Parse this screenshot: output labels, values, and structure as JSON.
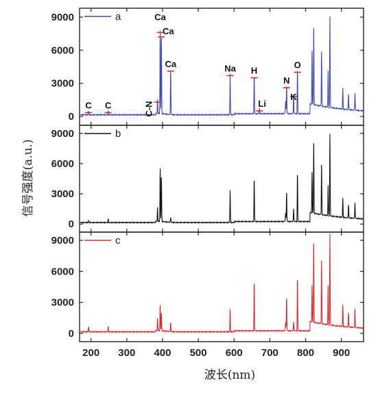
{
  "chart_data": {
    "type": "line",
    "xlabel": "波长(nm)",
    "ylabel": "信号强度(a.u.)",
    "xlim": [
      168,
      962
    ],
    "ylim": [
      -800,
      9800
    ],
    "x_ticks": [
      200,
      300,
      400,
      500,
      600,
      700,
      800,
      900
    ],
    "y_ticks": [
      0,
      3000,
      6000,
      9000
    ],
    "panels": [
      {
        "label": "a",
        "color": "#3f48b5",
        "peaks": [
          {
            "x": 193,
            "y": 350
          },
          {
            "x": 248,
            "y": 350
          },
          {
            "x": 386,
            "y": 1300
          },
          {
            "x": 393.4,
            "y": 7600
          },
          {
            "x": 396.8,
            "y": 7200
          },
          {
            "x": 422.7,
            "y": 4100
          },
          {
            "x": 588.995,
            "y": 3700
          },
          {
            "x": 656.3,
            "y": 3500
          },
          {
            "x": 670.8,
            "y": 500
          },
          {
            "x": 744,
            "y": 1200
          },
          {
            "x": 746.8,
            "y": 2600
          },
          {
            "x": 766.5,
            "y": 1800
          },
          {
            "x": 777.2,
            "y": 4000
          },
          {
            "x": 818,
            "y": 4800
          },
          {
            "x": 822.7,
            "y": 7300
          },
          {
            "x": 844.6,
            "y": 5000
          },
          {
            "x": 863,
            "y": 3300
          },
          {
            "x": 868,
            "y": 8200
          },
          {
            "x": 904,
            "y": 1900
          },
          {
            "x": 920,
            "y": 1400
          },
          {
            "x": 938,
            "y": 1600
          }
        ],
        "annotations": [
          {
            "text": "C",
            "x": 193,
            "y": 350
          },
          {
            "text": "C",
            "x": 248,
            "y": 350
          },
          {
            "text": "C-N",
            "x": 386,
            "y": 1300
          },
          {
            "text": "Ca",
            "x": 393.4,
            "y": 7600
          },
          {
            "text": "Ca",
            "x": 396.8,
            "y": 7200
          },
          {
            "text": "Ca",
            "x": 422.7,
            "y": 4100
          },
          {
            "text": "Na",
            "x": 588.995,
            "y": 3700
          },
          {
            "text": "H",
            "x": 656.3,
            "y": 3500
          },
          {
            "text": "Li",
            "x": 670.8,
            "y": 500
          },
          {
            "text": "N",
            "x": 746.8,
            "y": 2600
          },
          {
            "text": "K",
            "x": 766.5,
            "y": 1800
          },
          {
            "text": "O",
            "x": 777.2,
            "y": 4000
          }
        ]
      },
      {
        "label": "b",
        "color": "#111111",
        "peaks": [
          {
            "x": 193,
            "y": 200
          },
          {
            "x": 248,
            "y": 350
          },
          {
            "x": 386,
            "y": 1400
          },
          {
            "x": 393.4,
            "y": 5300
          },
          {
            "x": 396.8,
            "y": 4600
          },
          {
            "x": 422.7,
            "y": 500
          },
          {
            "x": 588.995,
            "y": 3200
          },
          {
            "x": 656.3,
            "y": 4300
          },
          {
            "x": 744,
            "y": 900
          },
          {
            "x": 746.8,
            "y": 3000
          },
          {
            "x": 766.5,
            "y": 1300
          },
          {
            "x": 777.2,
            "y": 4800
          },
          {
            "x": 818,
            "y": 4000
          },
          {
            "x": 822.7,
            "y": 7300
          },
          {
            "x": 844.6,
            "y": 5000
          },
          {
            "x": 863,
            "y": 3000
          },
          {
            "x": 868,
            "y": 8100
          },
          {
            "x": 904,
            "y": 1900
          },
          {
            "x": 920,
            "y": 1300
          },
          {
            "x": 938,
            "y": 1600
          }
        ]
      },
      {
        "label": "c",
        "color": "#d62b2b",
        "peaks": [
          {
            "x": 193,
            "y": 500
          },
          {
            "x": 248,
            "y": 500
          },
          {
            "x": 386,
            "y": 1200
          },
          {
            "x": 393.4,
            "y": 2500
          },
          {
            "x": 396.8,
            "y": 1800
          },
          {
            "x": 422.7,
            "y": 900
          },
          {
            "x": 588.995,
            "y": 2200
          },
          {
            "x": 656.3,
            "y": 4800
          },
          {
            "x": 744,
            "y": 900
          },
          {
            "x": 746.8,
            "y": 3300
          },
          {
            "x": 766.5,
            "y": 900
          },
          {
            "x": 777.2,
            "y": 5100
          },
          {
            "x": 818,
            "y": 3500
          },
          {
            "x": 822.7,
            "y": 8000
          },
          {
            "x": 844.6,
            "y": 6200
          },
          {
            "x": 863,
            "y": 3800
          },
          {
            "x": 868,
            "y": 8800
          },
          {
            "x": 904,
            "y": 2100
          },
          {
            "x": 920,
            "y": 1400
          },
          {
            "x": 938,
            "y": 1900
          }
        ]
      }
    ]
  }
}
